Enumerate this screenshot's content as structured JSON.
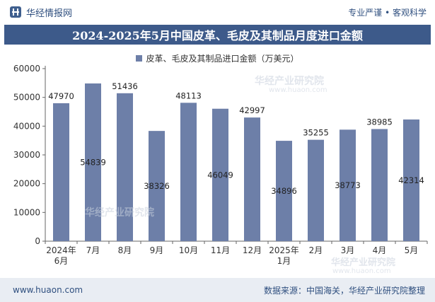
{
  "header": {
    "brand_name": "华经情报网",
    "slogan": "专业严谨 • 客观科学"
  },
  "banner": {
    "title": "2024-2025年5月中国皮革、毛皮及其制品月度进口金额"
  },
  "watermark": {
    "text": "华经产业研究院",
    "url": "www.huaon.com"
  },
  "chart_data": {
    "type": "bar",
    "title": "2024-2025年5月中国皮革、毛皮及其制品月度进口金额",
    "categories": [
      "2024年\n6月",
      "7月",
      "8月",
      "9月",
      "10月",
      "11月",
      "12月",
      "2025年\n1月",
      "2月",
      "3月",
      "4月",
      "5月"
    ],
    "series": [
      {
        "name": "皮革、毛皮及其制品进口金额（万美元）",
        "values": [
          47970,
          54839,
          51436,
          38326,
          48113,
          46049,
          42997,
          34896,
          35255,
          38773,
          38985,
          42314
        ]
      }
    ],
    "label_positions": [
      "top",
      "inside",
      "top",
      "inside",
      "top",
      "inside",
      "top",
      "inside",
      "top",
      "inside",
      "top",
      "inside"
    ],
    "ylim": [
      0,
      60000
    ],
    "yticks": [
      0,
      10000,
      20000,
      30000,
      40000,
      50000,
      60000
    ],
    "xlabel": "",
    "ylabel": "",
    "legend": "top-center",
    "bar_color": "#6d7fa8"
  },
  "footer": {
    "website": "www.huaon.com",
    "source": "数据来源：中国海关，华经产业研究院整理"
  }
}
